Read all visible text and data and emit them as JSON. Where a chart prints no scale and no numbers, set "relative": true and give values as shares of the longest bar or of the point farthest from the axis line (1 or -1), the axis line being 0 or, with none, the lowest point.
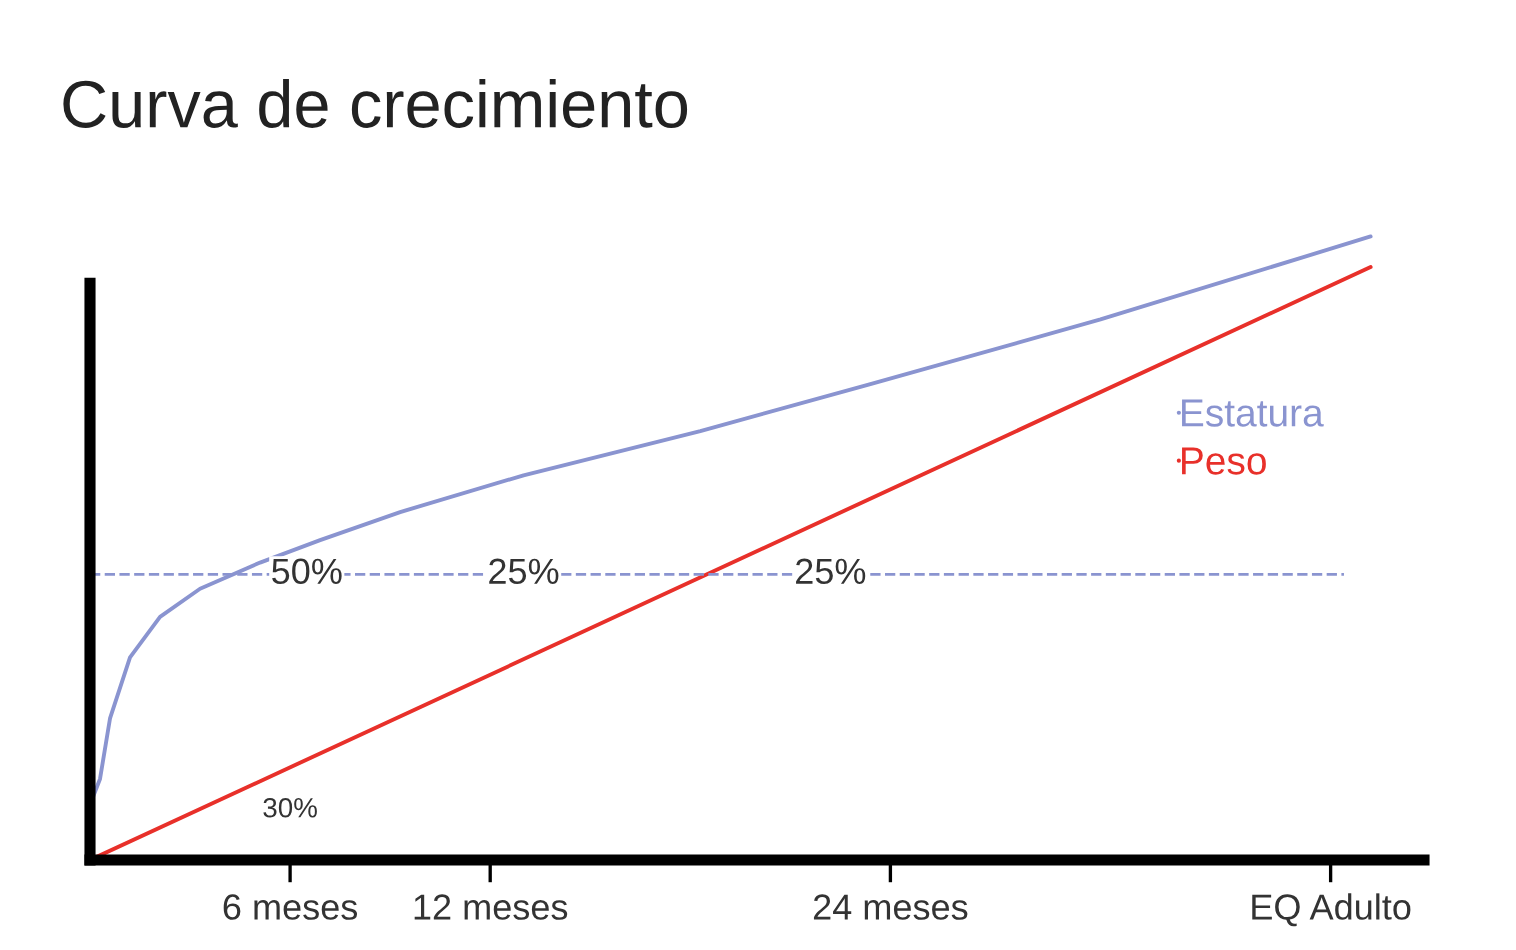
{
  "chart_data": {
    "type": "line",
    "title": "Curva de crecimiento",
    "relative": true,
    "xlim": [
      0,
      40
    ],
    "xticks": [
      {
        "value": 6,
        "label": "6 meses"
      },
      {
        "value": 12,
        "label": "12 meses"
      },
      {
        "value": 24,
        "label": "24 meses"
      },
      {
        "value": 37.2,
        "label": "EQ Adulto"
      }
    ],
    "series": [
      {
        "name": "Estatura",
        "color": "#8a94d0",
        "x": [
          0,
          0.06,
          0.3,
          0.6,
          1.2,
          2.1,
          3.3,
          5.1,
          6.9,
          9.3,
          13.0,
          18.3,
          23.4,
          30.3,
          38.4
        ],
        "values": [
          0,
          0.097,
          0.13,
          0.227,
          0.325,
          0.39,
          0.435,
          0.477,
          0.513,
          0.558,
          0.617,
          0.688,
          0.763,
          0.867,
          1.0
        ]
      },
      {
        "name": "Peso",
        "color": "#e8302a",
        "x": [
          0,
          38.4
        ],
        "values": [
          0,
          0.951
        ]
      }
    ],
    "ref_lines": [
      {
        "axis": "y",
        "value": 0.458,
        "color": "#8a94d0",
        "line_style": "dashed"
      }
    ],
    "annotations": [
      {
        "text": "50%",
        "x": 6.5,
        "y": 0.458
      },
      {
        "text": "25%",
        "x": 13.0,
        "y": 0.458
      },
      {
        "text": "25%",
        "x": 22.2,
        "y": 0.458
      },
      "30%"
    ],
    "legend": "right",
    "marker": "none",
    "line_style": "solid",
    "grid": false
  }
}
